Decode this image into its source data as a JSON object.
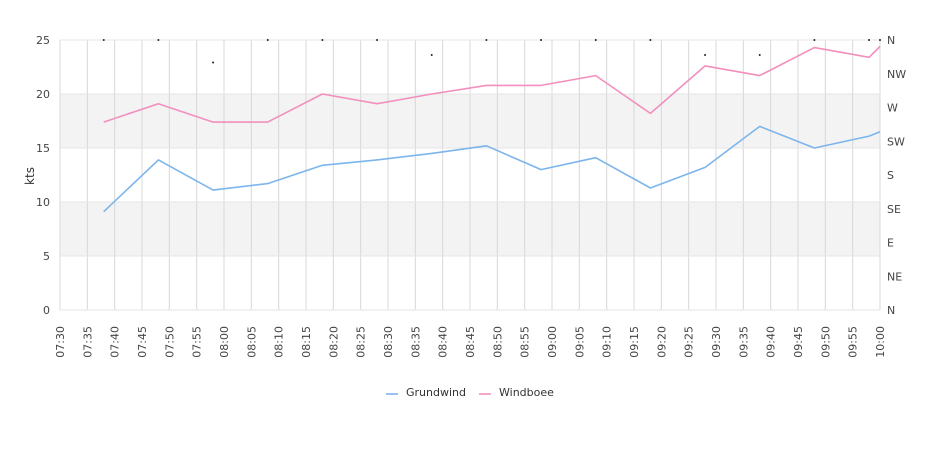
{
  "chart_data": {
    "type": "line",
    "ylabel": "kts",
    "ylim": [
      0,
      25
    ],
    "y_ticks": [
      "0",
      "5",
      "10",
      "15",
      "20",
      "25"
    ],
    "right_ticks": [
      "N",
      "NE",
      "E",
      "SE",
      "S",
      "SW",
      "W",
      "NW",
      "N"
    ],
    "x_ticks": [
      "07:30",
      "07:35",
      "07:40",
      "07:45",
      "07:50",
      "07:55",
      "08:00",
      "08:05",
      "08:10",
      "08:15",
      "08:20",
      "08:25",
      "08:30",
      "08:35",
      "08:40",
      "08:45",
      "08:50",
      "08:55",
      "09:00",
      "09:05",
      "09:10",
      "09:15",
      "09:20",
      "09:25",
      "09:30",
      "09:35",
      "09:40",
      "09:45",
      "09:50",
      "09:55",
      "10:00"
    ],
    "x": [
      "07:38",
      "07:48",
      "07:58",
      "08:08",
      "08:18",
      "08:28",
      "08:38",
      "08:48",
      "08:58",
      "09:08",
      "09:18",
      "09:28",
      "09:38",
      "09:48",
      "09:58",
      "10:00"
    ],
    "series": [
      {
        "name": "Grundwind",
        "color": "#7cb5ec",
        "values": [
          9.1,
          13.9,
          11.1,
          11.7,
          13.4,
          13.9,
          14.5,
          15.2,
          13.0,
          14.1,
          11.3,
          13.2,
          17.0,
          15.0,
          16.1,
          16.5
        ]
      },
      {
        "name": "Windboee",
        "color": "#f28fbe",
        "values": [
          17.4,
          19.1,
          17.4,
          17.4,
          20.0,
          19.1,
          20.0,
          20.8,
          20.8,
          21.7,
          18.2,
          22.6,
          21.7,
          24.3,
          23.4,
          24.4
        ]
      }
    ],
    "direction": {
      "times": [
        "07:38",
        "07:48",
        "07:58",
        "08:08",
        "08:18",
        "08:28",
        "08:38",
        "08:48",
        "08:58",
        "09:08",
        "09:18",
        "09:28",
        "09:38",
        "09:48",
        "09:58",
        "10:00"
      ],
      "values": [
        360,
        360,
        330,
        360,
        360,
        360,
        340,
        360,
        360,
        360,
        360,
        340,
        340,
        360,
        360,
        360
      ]
    },
    "plot_bands": [
      [
        5,
        10
      ],
      [
        15,
        20
      ]
    ],
    "band_color": "#f3f3f3",
    "grid": true,
    "legend_position": "bottom"
  }
}
